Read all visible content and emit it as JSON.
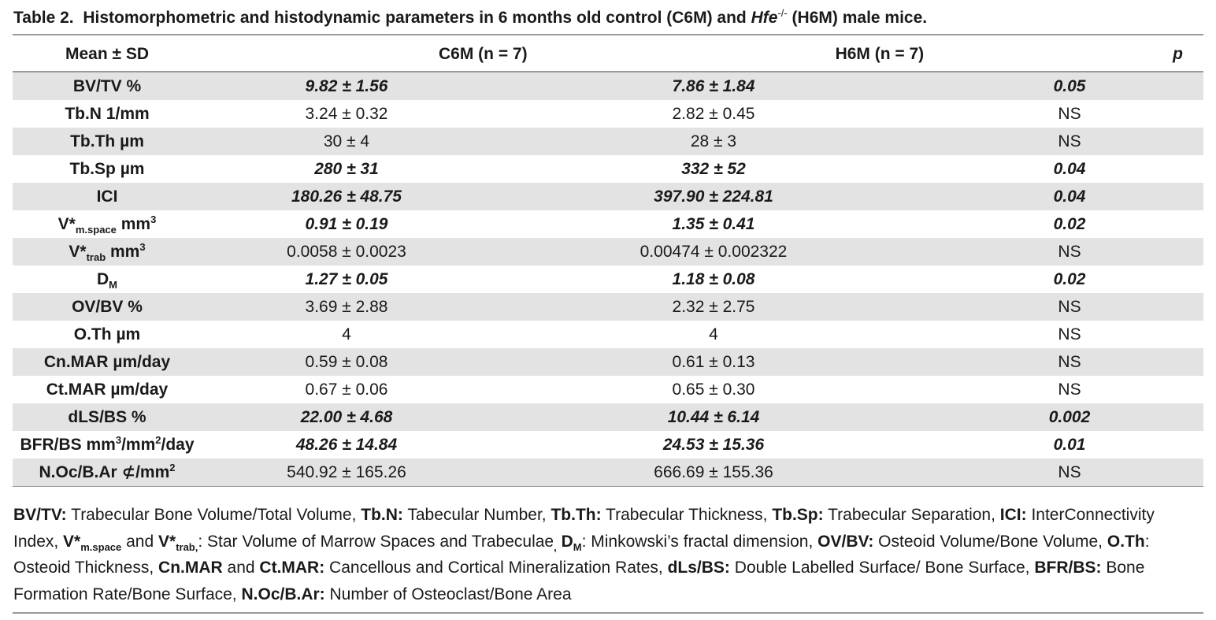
{
  "caption": {
    "label": "Table 2.",
    "text_before": "Histomorphometric and histodynamic parameters in 6 months old control (C6M) and ",
    "gene": "Hfe",
    "gene_sup": "-/-",
    "text_after": " (H6M) male mice."
  },
  "headers": {
    "col1": "Mean ± SD",
    "col2": "C6M (n = 7)",
    "col3": "H6M (n = 7)",
    "col4": "p"
  },
  "rows": [
    {
      "param": "BV/TV %",
      "c6m": "9.82 ± 1.56",
      "h6m": "7.86 ± 1.84",
      "p": "0.05"
    },
    {
      "param": "Tb.N 1/mm",
      "c6m": "3.24 ± 0.32",
      "h6m": "2.82 ± 0.45",
      "p": "NS"
    },
    {
      "param": "Tb.Th µm",
      "c6m": "30 ± 4",
      "h6m": "28 ± 3",
      "p": "NS"
    },
    {
      "param": "Tb.Sp µm",
      "c6m": "280 ± 31",
      "h6m": "332 ± 52",
      "p": "0.04"
    },
    {
      "param": "ICI",
      "c6m": "180.26 ± 48.75",
      "h6m": "397.90 ± 224.81",
      "p": "0.04"
    },
    {
      "param_base": "V*",
      "param_sub": "m.space",
      "param_unit": " mm",
      "param_sup": "3",
      "c6m": "0.91 ± 0.19",
      "h6m": "1.35 ± 0.41",
      "p": "0.02"
    },
    {
      "param_base": "V*",
      "param_sub": "trab",
      "param_unit": " mm",
      "param_sup": "3",
      "c6m": "0.0058 ± 0.0023",
      "h6m": "0.00474 ± 0.002322",
      "p": "NS"
    },
    {
      "param_base": "D",
      "param_sub": "M",
      "c6m": "1.27 ± 0.05",
      "h6m": "1.18 ± 0.08",
      "p": "0.02"
    },
    {
      "param": "OV/BV %",
      "c6m": "3.69 ± 2.88",
      "h6m": "2.32 ± 2.75",
      "p": "NS"
    },
    {
      "param": "O.Th µm",
      "c6m": "4",
      "h6m": "4",
      "p": "NS"
    },
    {
      "param": "Cn.MAR µm/day",
      "c6m": "0.59 ± 0.08",
      "h6m": "0.61 ± 0.13",
      "p": "NS"
    },
    {
      "param": "Ct.MAR µm/day",
      "c6m": "0.67 ± 0.06",
      "h6m": "0.65 ± 0.30",
      "p": "NS"
    },
    {
      "param": "dLS/BS %",
      "c6m": "22.00 ± 4.68",
      "h6m": "10.44 ± 6.14",
      "p": "0.002"
    },
    {
      "param_a": "BFR/BS mm",
      "sup_a": "3",
      "param_b": "/mm",
      "sup_b": "2",
      "param_c": "/day",
      "c6m": "48.26 ± 14.84",
      "h6m": "24.53 ± 15.36",
      "p": "0.01"
    },
    {
      "param_a": "N.Oc/B.Ar ⊄/mm",
      "sup_a": "2",
      "c6m": "540.92 ± 165.26",
      "h6m": "666.69 ± 155.36",
      "p": "NS"
    }
  ],
  "footnote": {
    "t01": "BV/TV:",
    "d01": " Trabecular Bone Volume/Total Volume, ",
    "t02": "Tb.N:",
    "d02": " Tabecular Number, ",
    "t03": "Tb.Th:",
    "d03": " Trabecular Thickness, ",
    "t04": "Tb.Sp:",
    "d04": " Trabecular Separation, ",
    "t05": "ICI:",
    "d05": " InterConnectivity Index, ",
    "t06": "V*",
    "s06": "m.space",
    "d06": " and ",
    "t07": "V*",
    "s07": "trab,",
    "d07": ": Star Volume of Marrow Spaces and Trabeculae",
    "s07b": ",",
    "t08": "D",
    "s08": "M",
    "d08": ": Minkowski’s fractal dimension, ",
    "t09": "OV/BV:",
    "d09": " Osteoid Volume/Bone Volume, ",
    "t10": "O.Th",
    "d10": ": Osteoid Thickness, ",
    "t11": "Cn.MAR",
    "d11": " and ",
    "t12": "Ct.MAR:",
    "d12": " Cancellous and Cortical Mineralization Rates, ",
    "t13": "dLs/BS:",
    "d13": " Double Labelled Surface/ Bone Surface, ",
    "t14": "BFR/BS:",
    "d14": " Bone Formation Rate/Bone Surface, ",
    "t15": "N.Oc/B.Ar:",
    "d15": " Number of Osteoclast/Bone Area"
  }
}
